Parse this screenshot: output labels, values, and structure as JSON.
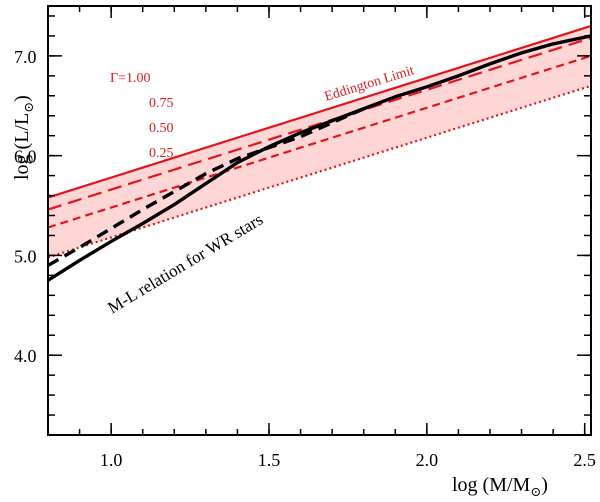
{
  "chart_data": {
    "type": "line",
    "title": "",
    "xlabel": "log (M/M",
    "xlabel_sub": "⊙",
    "xlabel_close": ")",
    "ylabel": "log (L/L",
    "ylabel_sub": "⊙",
    "ylabel_close": ")",
    "xlim": [
      0.8,
      2.52
    ],
    "ylim": [
      3.2,
      7.5
    ],
    "xticks": [
      1.0,
      1.5,
      2.0,
      2.5
    ],
    "xtick_labels": [
      "1.0",
      "1.5",
      "2.0",
      "2.5"
    ],
    "yticks": [
      4.0,
      5.0,
      6.0,
      7.0
    ],
    "ytick_labels": [
      "4.0",
      "5.0",
      "6.0",
      "7.0"
    ],
    "x_minor_step": 0.1,
    "y_minor_step": 0.2,
    "shaded_band": {
      "between": [
        "gamma_1.00",
        "gamma_0.25"
      ],
      "color": "#ffd6d6"
    },
    "series": [
      {
        "id": "gamma_1.00",
        "name": "Γ = 1.00 (Eddington Limit)",
        "style": "solid",
        "color": "#e0161c",
        "x": [
          0.8,
          2.52
        ],
        "y": [
          5.58,
          7.3
        ]
      },
      {
        "id": "gamma_0.75",
        "name": "Γ = 0.75",
        "style": "long-dash",
        "color": "#e0161c",
        "x": [
          0.8,
          2.52
        ],
        "y": [
          5.46,
          7.18
        ]
      },
      {
        "id": "gamma_0.50",
        "name": "Γ = 0.50",
        "style": "dash",
        "color": "#e0161c",
        "x": [
          0.8,
          2.52
        ],
        "y": [
          5.28,
          7.0
        ]
      },
      {
        "id": "gamma_0.25",
        "name": "Γ = 0.25",
        "style": "dotted",
        "color": "#e0161c",
        "x": [
          0.8,
          2.52
        ],
        "y": [
          4.98,
          6.7
        ]
      },
      {
        "id": "ml_solid",
        "name": "M-L relation for WR stars",
        "style": "solid",
        "color": "#000000",
        "x": [
          0.8,
          0.9,
          1.0,
          1.1,
          1.2,
          1.3,
          1.4,
          1.5,
          1.6,
          1.7,
          1.8,
          1.9,
          2.0,
          2.1,
          2.2,
          2.3,
          2.4,
          2.52
        ],
        "y": [
          4.75,
          4.95,
          5.14,
          5.32,
          5.51,
          5.72,
          5.93,
          6.09,
          6.23,
          6.35,
          6.47,
          6.59,
          6.69,
          6.8,
          6.92,
          7.03,
          7.12,
          7.2
        ]
      },
      {
        "id": "ml_dashed",
        "name": "M-L relation (dashed)",
        "style": "dash",
        "color": "#000000",
        "x": [
          0.8,
          0.9,
          1.0,
          1.1,
          1.2,
          1.3,
          1.4,
          1.5,
          1.6,
          1.7,
          1.8
        ],
        "y": [
          4.9,
          5.08,
          5.27,
          5.46,
          5.64,
          5.82,
          5.97,
          6.08,
          6.19,
          6.33,
          6.47
        ]
      }
    ],
    "annotations": {
      "gamma_prefix": "Γ=",
      "gamma_values": [
        "1.00",
        "0.75",
        "0.50",
        "0.25"
      ],
      "eddington_label": "Eddington Limit",
      "ml_label": "M-L relation for WR stars"
    }
  }
}
